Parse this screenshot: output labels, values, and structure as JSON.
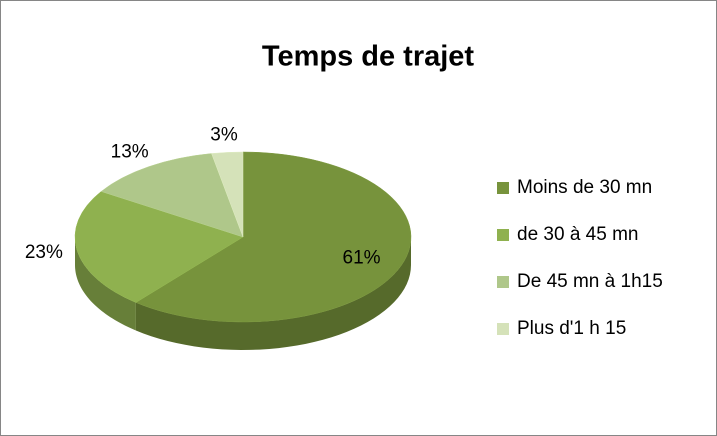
{
  "chart_data": {
    "type": "pie",
    "title": "Temps de trajet",
    "categories": [
      "Moins de 30 mn",
      "de 30 à 45 mn",
      "De 45 mn à 1h15",
      "Plus d'1 h 15"
    ],
    "values": [
      61,
      23,
      13,
      3
    ],
    "value_labels": [
      "61%",
      "23%",
      "13%",
      "3%"
    ],
    "colors": [
      "#77933c",
      "#8fb14f",
      "#afc78a",
      "#d5e2b9"
    ],
    "legend": "right"
  }
}
